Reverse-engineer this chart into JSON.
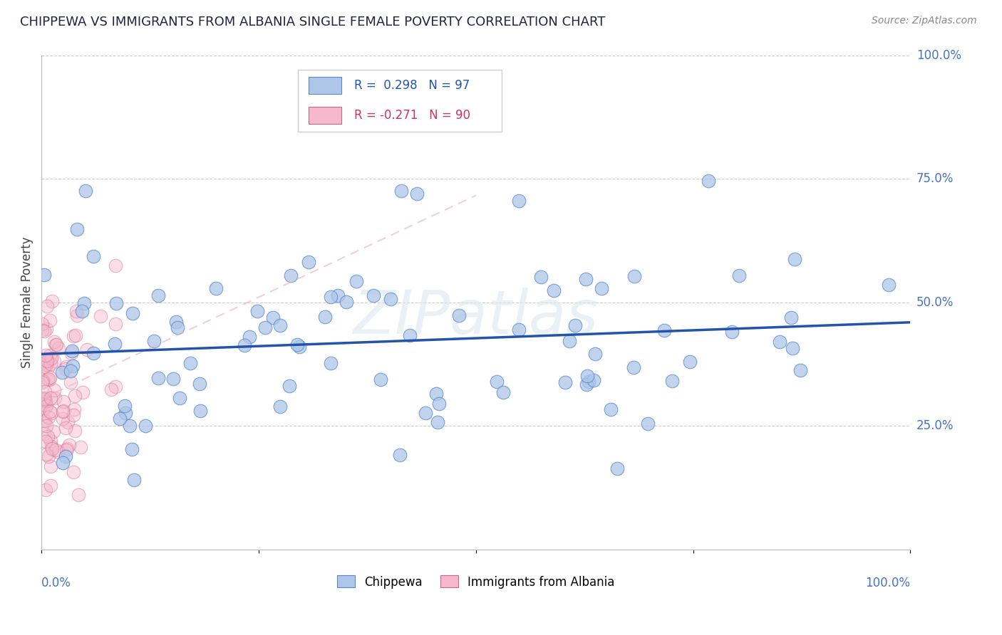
{
  "title": "CHIPPEWA VS IMMIGRANTS FROM ALBANIA SINGLE FEMALE POVERTY CORRELATION CHART",
  "source": "Source: ZipAtlas.com",
  "ylabel": "Single Female Poverty",
  "ytick_labels": [
    "25.0%",
    "50.0%",
    "75.0%",
    "100.0%"
  ],
  "ytick_values": [
    0.25,
    0.5,
    0.75,
    1.0
  ],
  "legend_blue_label": "Chippewa",
  "legend_pink_label": "Immigrants from Albania",
  "blue_color": "#aec6e8",
  "blue_edge_color": "#5588cc",
  "blue_line_color": "#2255aa",
  "pink_color": "#f5b8cc",
  "pink_edge_color": "#cc6688",
  "pink_line_color": "#cc6688",
  "watermark": "ZIPatlas",
  "watermark_color": "#dce8f0",
  "grid_color": "#cccccc",
  "title_color": "#222244",
  "source_color": "#888888",
  "axis_label_color": "#4472c4",
  "right_label_color": "#4472c4",
  "legend_r_blue_color": "#2255aa",
  "legend_r_pink_color": "#cc3366",
  "legend_n_color": "#33aa66"
}
